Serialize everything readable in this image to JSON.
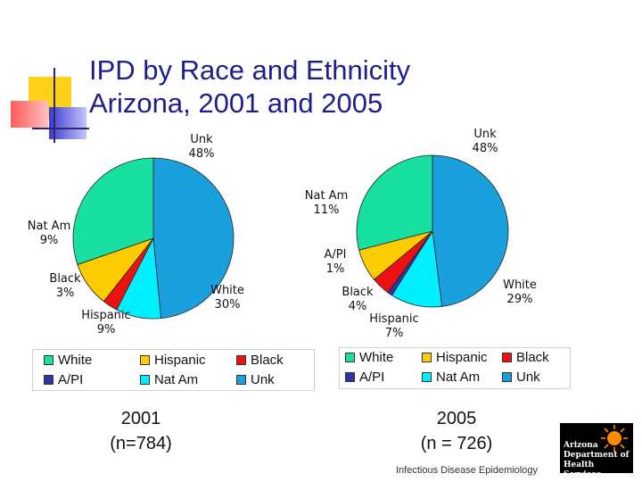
{
  "title": "IPD by Race and Ethnicity\nArizona, 2001 and 2005",
  "colors": {
    "White": "#17e0a0",
    "Hispanic": "#ffcc00",
    "Black": "#ee1111",
    "A/PI": "#3333a8",
    "Nat Am": "#00f0ff",
    "Unk": "#1aa0dc"
  },
  "chart_data": [
    {
      "type": "pie",
      "title": "2001",
      "subtitle": "(n=784)",
      "categories": [
        "White",
        "Hispanic",
        "Black",
        "A/PI",
        "Nat Am",
        "Unk"
      ],
      "values": [
        30,
        9,
        3,
        0,
        9,
        48
      ],
      "labels": [
        {
          "name": "White",
          "value": "30%"
        },
        {
          "name": "Hispanic",
          "value": "9%"
        },
        {
          "name": "Black",
          "value": "3%"
        },
        {
          "name": "Nat Am",
          "value": "9%"
        },
        {
          "name": "Unk",
          "value": "48%"
        }
      ],
      "legend": [
        "White",
        "Hispanic",
        "Black",
        "A/PI",
        "Nat Am",
        "Unk"
      ],
      "legend_position": "bottom"
    },
    {
      "type": "pie",
      "title": "2005",
      "subtitle": "(n = 726)",
      "categories": [
        "White",
        "Hispanic",
        "Black",
        "A/PI",
        "Nat Am",
        "Unk"
      ],
      "values": [
        29,
        7,
        4,
        1,
        11,
        48
      ],
      "labels": [
        {
          "name": "White",
          "value": "29%"
        },
        {
          "name": "Hispanic",
          "value": "7%"
        },
        {
          "name": "Black",
          "value": "4%"
        },
        {
          "name": "A/PI",
          "value": "1%"
        },
        {
          "name": "Nat Am",
          "value": "11%"
        },
        {
          "name": "Unk",
          "value": "48%"
        }
      ],
      "legend": [
        "White",
        "Hispanic",
        "Black",
        "A/PI",
        "Nat Am",
        "Unk"
      ],
      "legend_position": "bottom"
    }
  ],
  "footer": "Infectious Disease Epidemiology",
  "logo": [
    "Arizona",
    "Department of",
    "Health Services"
  ]
}
